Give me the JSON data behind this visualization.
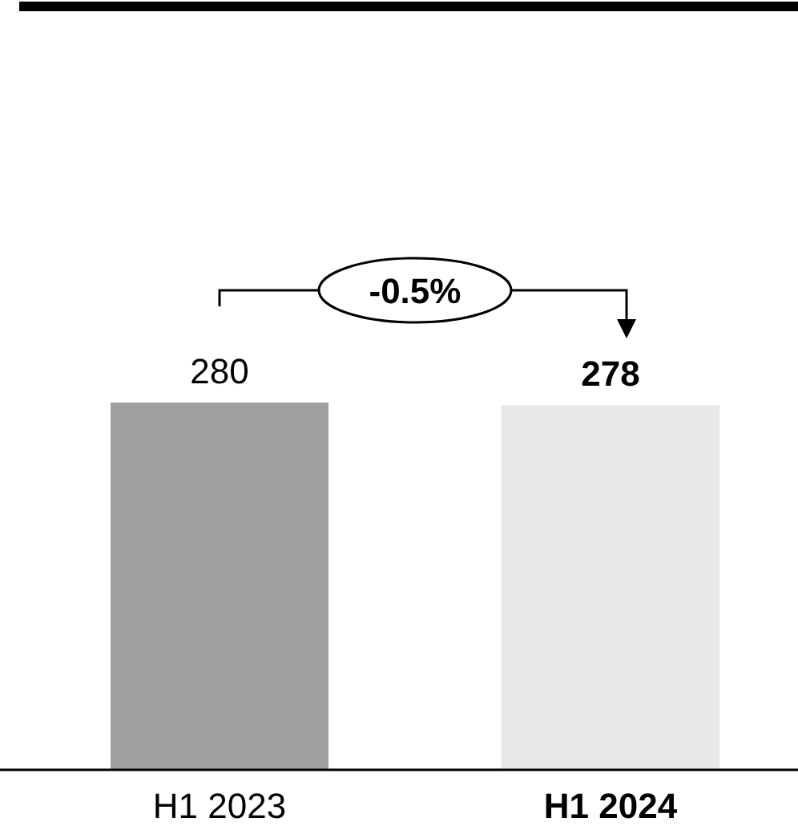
{
  "chart_data": {
    "type": "bar",
    "categories": [
      "H1 2023",
      "H1 2024"
    ],
    "colors": [
      "#a0a0a0",
      "#e8e8e8"
    ],
    "values": [
      280,
      278
    ],
    "data_labels": true,
    "annotations": [
      "-0.5%"
    ]
  }
}
